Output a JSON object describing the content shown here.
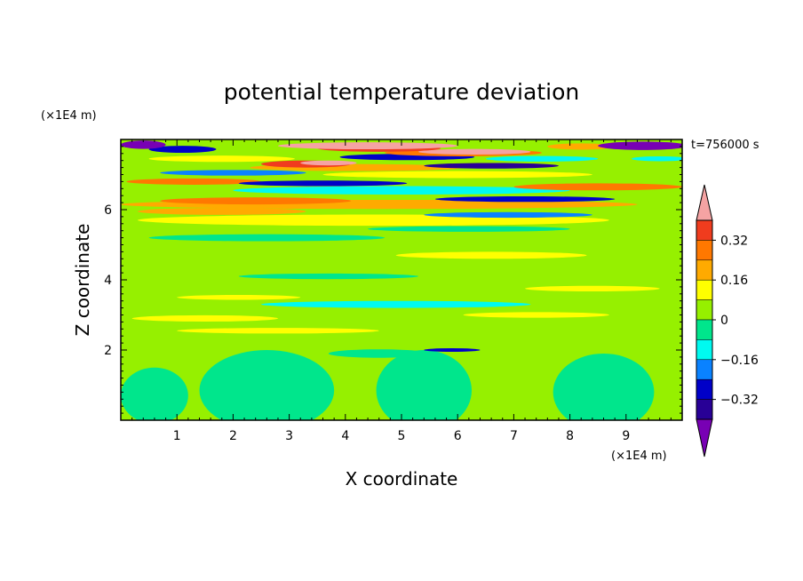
{
  "chart_data": {
    "type": "heatmap",
    "title": "potential temperature deviation",
    "xlabel": "X coordinate",
    "ylabel": "Z coordinate",
    "x_unit": "(×1E4 m)",
    "y_unit": "(×1E4 m)",
    "time_label": "t=756000 s",
    "xlim": [
      0,
      10
    ],
    "ylim": [
      0,
      8
    ],
    "xticks": [
      {
        "value": 1,
        "label": "1"
      },
      {
        "value": 2,
        "label": "2"
      },
      {
        "value": 3,
        "label": "3"
      },
      {
        "value": 4,
        "label": "4"
      },
      {
        "value": 5,
        "label": "5"
      },
      {
        "value": 6,
        "label": "6"
      },
      {
        "value": 7,
        "label": "7"
      },
      {
        "value": 8,
        "label": "8"
      },
      {
        "value": 9,
        "label": "9"
      }
    ],
    "yticks": [
      {
        "value": 2,
        "label": "2"
      },
      {
        "value": 4,
        "label": "4"
      },
      {
        "value": 6,
        "label": "6"
      }
    ],
    "colorbar": {
      "bins": [
        {
          "lo": 0.4,
          "hi": 0.48,
          "color": "#f5a3a3"
        },
        {
          "lo": 0.32,
          "hi": 0.4,
          "color": "#f03c1e"
        },
        {
          "lo": 0.24,
          "hi": 0.32,
          "color": "#ff7800"
        },
        {
          "lo": 0.16,
          "hi": 0.24,
          "color": "#ffaa00"
        },
        {
          "lo": 0.08,
          "hi": 0.16,
          "color": "#ffff00"
        },
        {
          "lo": 0,
          "hi": 0.08,
          "color": "#96f000"
        },
        {
          "lo": -0.08,
          "hi": 0,
          "color": "#00e68c"
        },
        {
          "lo": -0.16,
          "hi": -0.08,
          "color": "#00faf0"
        },
        {
          "lo": -0.24,
          "hi": -0.16,
          "color": "#0a82ff"
        },
        {
          "lo": -0.32,
          "hi": -0.24,
          "color": "#0000c8"
        },
        {
          "lo": -0.4,
          "hi": -0.32,
          "color": "#280096"
        },
        {
          "lo": -0.48,
          "hi": -0.4,
          "color": "#7800b4"
        }
      ],
      "tick_labels": [
        {
          "value": 0.32,
          "label": "0.32"
        },
        {
          "value": 0.16,
          "label": "0.16"
        },
        {
          "value": 0,
          "label": "0"
        },
        {
          "value": -0.16,
          "label": "−0.16"
        },
        {
          "value": -0.32,
          "label": "−0.32"
        }
      ]
    },
    "background_color": "#96f000",
    "regions": [
      {
        "shape": "ellipse",
        "cx": 2.6,
        "cy": 0.85,
        "rx": 1.2,
        "ry": 1.15,
        "value": -0.04
      },
      {
        "shape": "ellipse",
        "cx": 5.4,
        "cy": 0.85,
        "rx": 0.85,
        "ry": 1.15,
        "value": -0.04
      },
      {
        "shape": "ellipse",
        "cx": 8.6,
        "cy": 0.8,
        "rx": 0.9,
        "ry": 1.1,
        "value": -0.04
      },
      {
        "shape": "ellipse",
        "cx": 0.6,
        "cy": 0.7,
        "rx": 0.6,
        "ry": 0.8,
        "value": -0.04
      },
      {
        "shape": "ellipse",
        "cx": 4.6,
        "cy": 1.9,
        "rx": 0.9,
        "ry": 0.12,
        "value": -0.04
      },
      {
        "shape": "ellipse",
        "cx": 2.8,
        "cy": 2.55,
        "rx": 1.8,
        "ry": 0.08,
        "value": 0.1
      },
      {
        "shape": "ellipse",
        "cx": 5.9,
        "cy": 2.0,
        "rx": 0.5,
        "ry": 0.05,
        "value": -0.3
      },
      {
        "shape": "ellipse",
        "cx": 1.5,
        "cy": 2.9,
        "rx": 1.3,
        "ry": 0.09,
        "value": 0.1
      },
      {
        "shape": "ellipse",
        "cx": 7.4,
        "cy": 3.0,
        "rx": 1.3,
        "ry": 0.08,
        "value": 0.1
      },
      {
        "shape": "ellipse",
        "cx": 4.9,
        "cy": 3.3,
        "rx": 2.4,
        "ry": 0.1,
        "value": -0.12
      },
      {
        "shape": "ellipse",
        "cx": 2.1,
        "cy": 3.5,
        "rx": 1.1,
        "ry": 0.07,
        "value": 0.12
      },
      {
        "shape": "ellipse",
        "cx": 8.4,
        "cy": 3.75,
        "rx": 1.2,
        "ry": 0.08,
        "value": 0.1
      },
      {
        "shape": "ellipse",
        "cx": 3.7,
        "cy": 4.1,
        "rx": 1.6,
        "ry": 0.08,
        "value": -0.04
      },
      {
        "shape": "ellipse",
        "cx": 6.6,
        "cy": 4.7,
        "rx": 1.7,
        "ry": 0.1,
        "value": 0.1
      },
      {
        "shape": "ellipse",
        "cx": 2.6,
        "cy": 5.2,
        "rx": 2.1,
        "ry": 0.1,
        "value": -0.04
      },
      {
        "shape": "ellipse",
        "cx": 6.2,
        "cy": 5.45,
        "rx": 1.8,
        "ry": 0.08,
        "value": -0.04
      },
      {
        "shape": "ellipse",
        "cx": 4.5,
        "cy": 5.7,
        "rx": 4.2,
        "ry": 0.16,
        "value": 0.1
      },
      {
        "shape": "ellipse",
        "cx": 1.8,
        "cy": 5.95,
        "rx": 1.5,
        "ry": 0.1,
        "value": 0.2
      },
      {
        "shape": "ellipse",
        "cx": 6.9,
        "cy": 5.85,
        "rx": 1.5,
        "ry": 0.08,
        "value": -0.2
      },
      {
        "shape": "ellipse",
        "cx": 4.6,
        "cy": 6.15,
        "rx": 4.6,
        "ry": 0.13,
        "value": 0.2
      },
      {
        "shape": "ellipse",
        "cx": 2.4,
        "cy": 6.25,
        "rx": 1.7,
        "ry": 0.1,
        "value": 0.3
      },
      {
        "shape": "ellipse",
        "cx": 7.2,
        "cy": 6.3,
        "rx": 1.6,
        "ry": 0.08,
        "value": -0.28
      },
      {
        "shape": "ellipse",
        "cx": 5.0,
        "cy": 6.55,
        "rx": 3.0,
        "ry": 0.12,
        "value": -0.12
      },
      {
        "shape": "ellipse",
        "cx": 8.5,
        "cy": 6.65,
        "rx": 1.5,
        "ry": 0.1,
        "value": 0.3
      },
      {
        "shape": "ellipse",
        "cx": 1.3,
        "cy": 6.8,
        "rx": 1.2,
        "ry": 0.09,
        "value": 0.3
      },
      {
        "shape": "ellipse",
        "cx": 3.6,
        "cy": 6.75,
        "rx": 1.5,
        "ry": 0.08,
        "value": -0.28
      },
      {
        "shape": "ellipse",
        "cx": 6.0,
        "cy": 7.0,
        "rx": 2.4,
        "ry": 0.1,
        "value": 0.1
      },
      {
        "shape": "ellipse",
        "cx": 2.0,
        "cy": 7.05,
        "rx": 1.3,
        "ry": 0.08,
        "value": -0.2
      },
      {
        "shape": "ellipse",
        "cx": 4.2,
        "cy": 7.2,
        "rx": 1.9,
        "ry": 0.1,
        "value": 0.2
      },
      {
        "shape": "ellipse",
        "cx": 6.6,
        "cy": 7.25,
        "rx": 1.2,
        "ry": 0.08,
        "value": -0.36
      },
      {
        "shape": "ellipse",
        "cx": 3.3,
        "cy": 7.3,
        "rx": 0.8,
        "ry": 0.1,
        "value": 0.36
      },
      {
        "shape": "ellipse",
        "cx": 3.7,
        "cy": 7.33,
        "rx": 0.5,
        "ry": 0.07,
        "value": 0.44
      },
      {
        "shape": "ellipse",
        "cx": 1.8,
        "cy": 7.45,
        "rx": 1.3,
        "ry": 0.09,
        "value": 0.1
      },
      {
        "shape": "ellipse",
        "cx": 5.1,
        "cy": 7.5,
        "rx": 1.2,
        "ry": 0.09,
        "value": -0.3
      },
      {
        "shape": "ellipse",
        "cx": 7.5,
        "cy": 7.45,
        "rx": 1.0,
        "ry": 0.08,
        "value": -0.12
      },
      {
        "shape": "ellipse",
        "cx": 6.1,
        "cy": 7.62,
        "rx": 1.4,
        "ry": 0.1,
        "value": 0.3
      },
      {
        "shape": "ellipse",
        "cx": 6.3,
        "cy": 7.65,
        "rx": 1.0,
        "ry": 0.08,
        "value": 0.44
      },
      {
        "shape": "ellipse",
        "cx": 4.6,
        "cy": 7.75,
        "rx": 1.1,
        "ry": 0.1,
        "value": 0.36
      },
      {
        "shape": "ellipse",
        "cx": 4.4,
        "cy": 7.82,
        "rx": 1.6,
        "ry": 0.1,
        "value": 0.44
      },
      {
        "shape": "ellipse",
        "cx": 1.1,
        "cy": 7.72,
        "rx": 0.6,
        "ry": 0.1,
        "value": -0.3
      },
      {
        "shape": "ellipse",
        "cx": 0.4,
        "cy": 7.85,
        "rx": 0.4,
        "ry": 0.12,
        "value": -0.44
      },
      {
        "shape": "ellipse",
        "cx": 8.2,
        "cy": 7.8,
        "rx": 0.6,
        "ry": 0.09,
        "value": 0.2
      },
      {
        "shape": "ellipse",
        "cx": 9.3,
        "cy": 7.82,
        "rx": 0.8,
        "ry": 0.12,
        "value": -0.44
      },
      {
        "shape": "ellipse",
        "cx": 9.6,
        "cy": 7.45,
        "rx": 0.5,
        "ry": 0.07,
        "value": -0.12
      }
    ]
  }
}
